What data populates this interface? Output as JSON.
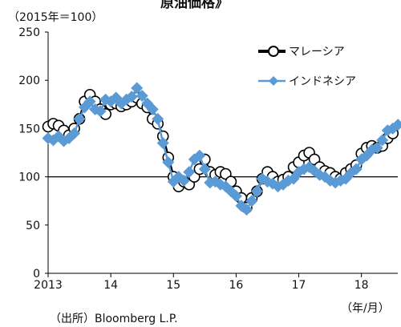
{
  "chart_data": {
    "type": "line",
    "title": "原油価格》",
    "unit_label": "（2015年＝100）",
    "x_unit_label": "（年/月）",
    "source": "（出所）Bloomberg L.P.",
    "xlabel": "",
    "ylabel": "",
    "ylim": [
      0,
      250
    ],
    "yticks": [
      "0",
      "50",
      "100",
      "150",
      "200",
      "250"
    ],
    "xticks": [
      "2013",
      "14",
      "15",
      "16",
      "17",
      "18"
    ],
    "xtick_times": [
      2013.0,
      2014.0,
      2015.0,
      2016.0,
      2017.0,
      2018.0
    ],
    "xlim": [
      2013.0,
      2018.58
    ],
    "reference_line": 100,
    "grid": false,
    "legend_position": "top-right",
    "series": [
      {
        "name": "マレーシア",
        "marker": "circle",
        "color": "#000000",
        "x": [
          2013.0,
          2013.083,
          2013.167,
          2013.25,
          2013.333,
          2013.417,
          2013.5,
          2013.583,
          2013.667,
          2013.75,
          2013.833,
          2013.917,
          2014.0,
          2014.083,
          2014.167,
          2014.25,
          2014.333,
          2014.417,
          2014.5,
          2014.583,
          2014.667,
          2014.75,
          2014.833,
          2014.917,
          2015.0,
          2015.083,
          2015.167,
          2015.25,
          2015.333,
          2015.417,
          2015.5,
          2015.583,
          2015.667,
          2015.75,
          2015.833,
          2015.917,
          2016.0,
          2016.083,
          2016.167,
          2016.25,
          2016.333,
          2016.417,
          2016.5,
          2016.583,
          2016.667,
          2016.75,
          2016.833,
          2016.917,
          2017.0,
          2017.083,
          2017.167,
          2017.25,
          2017.333,
          2017.417,
          2017.5,
          2017.583,
          2017.667,
          2017.75,
          2017.833,
          2017.917,
          2018.0,
          2018.083,
          2018.167,
          2018.25,
          2018.333,
          2018.417,
          2018.5
        ],
        "values": [
          152,
          155,
          153,
          148,
          143,
          150,
          160,
          178,
          185,
          178,
          170,
          165,
          175,
          176,
          173,
          175,
          178,
          182,
          176,
          172,
          160,
          155,
          142,
          120,
          100,
          90,
          95,
          92,
          100,
          108,
          118,
          105,
          102,
          105,
          103,
          95,
          85,
          78,
          68,
          78,
          85,
          98,
          105,
          100,
          95,
          97,
          100,
          110,
          115,
          122,
          125,
          118,
          110,
          106,
          104,
          100,
          98,
          104,
          108,
          112,
          124,
          130,
          132,
          130,
          132,
          140,
          145
        ]
      },
      {
        "name": "インドネシア",
        "marker": "diamond",
        "color": "#5b9bd5",
        "x": [
          2013.0,
          2013.083,
          2013.167,
          2013.25,
          2013.333,
          2013.417,
          2013.5,
          2013.583,
          2013.667,
          2013.75,
          2013.833,
          2013.917,
          2014.0,
          2014.083,
          2014.167,
          2014.25,
          2014.333,
          2014.417,
          2014.5,
          2014.583,
          2014.667,
          2014.75,
          2014.833,
          2014.917,
          2015.0,
          2015.083,
          2015.167,
          2015.25,
          2015.333,
          2015.417,
          2015.5,
          2015.583,
          2015.667,
          2015.75,
          2015.833,
          2015.917,
          2016.0,
          2016.083,
          2016.167,
          2016.25,
          2016.333,
          2016.417,
          2016.5,
          2016.583,
          2016.667,
          2016.75,
          2016.833,
          2016.917,
          2017.0,
          2017.083,
          2017.167,
          2017.25,
          2017.333,
          2017.417,
          2017.5,
          2017.583,
          2017.667,
          2017.75,
          2017.833,
          2017.917,
          2018.0,
          2018.083,
          2018.167,
          2018.25,
          2018.333,
          2018.417,
          2018.5,
          2018.583
        ],
        "values": [
          140,
          138,
          142,
          137,
          140,
          145,
          160,
          172,
          178,
          170,
          168,
          180,
          178,
          182,
          176,
          180,
          183,
          192,
          184,
          176,
          170,
          160,
          135,
          115,
          95,
          100,
          96,
          105,
          118,
          122,
          108,
          94,
          95,
          92,
          90,
          85,
          80,
          70,
          66,
          75,
          85,
          98,
          95,
          93,
          90,
          92,
          96,
          98,
          105,
          108,
          110,
          106,
          102,
          100,
          96,
          94,
          96,
          98,
          104,
          108,
          118,
          122,
          128,
          130,
          138,
          148,
          150,
          154
        ]
      }
    ]
  }
}
